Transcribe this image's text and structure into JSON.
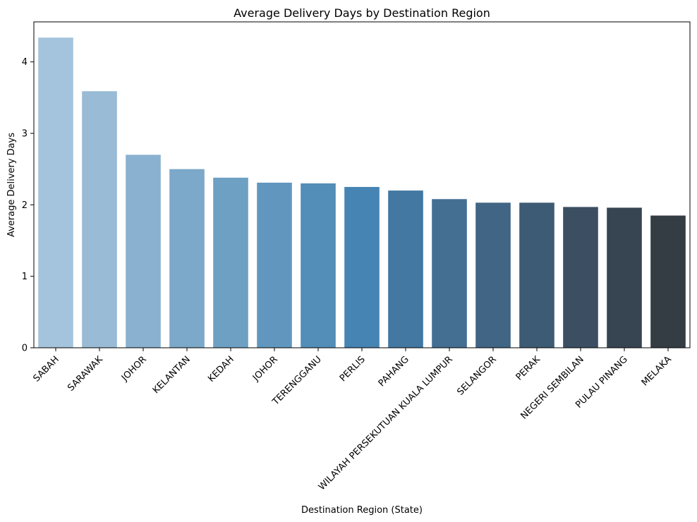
{
  "chart_data": {
    "type": "bar",
    "title": "Average Delivery Days by Destination Region",
    "xlabel": "Destination Region (State)",
    "ylabel": "Average Delivery Days",
    "categories": [
      "SABAH",
      "SARAWAK",
      "JOHOR",
      "KELANTAN",
      "KEDAH",
      "JOHOR",
      "TERENGGANU",
      "PERLIS",
      "PAHANG",
      "WILAYAH PERSEKUTUAN KUALA LUMPUR",
      "SELANGOR",
      "PERAK",
      "NEGERI SEMBILAN",
      "PULAU PINANG",
      "MELAKA"
    ],
    "values": [
      4.34,
      3.59,
      2.7,
      2.5,
      2.38,
      2.31,
      2.3,
      2.25,
      2.2,
      2.08,
      2.03,
      2.03,
      1.97,
      1.96,
      1.85
    ],
    "colors": [
      "#a3c4dc",
      "#99bbd5",
      "#8ab1cf",
      "#7ca8c9",
      "#6ea0c4",
      "#6197be",
      "#528eb8",
      "#4684b3",
      "#4278a1",
      "#446f93",
      "#416685",
      "#3d5b74",
      "#3b4e62",
      "#374451",
      "#343c44"
    ],
    "yticks": [
      0,
      1,
      2,
      3,
      4
    ],
    "ylim": [
      0,
      4.56
    ],
    "grid": false,
    "legend": false
  }
}
